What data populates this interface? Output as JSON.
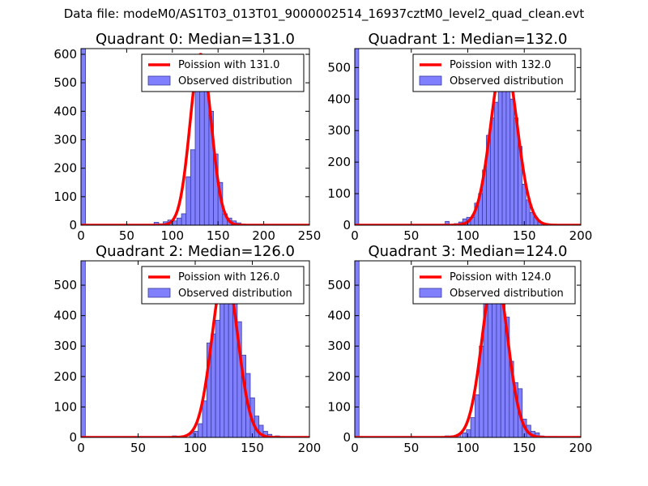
{
  "suptitle": "Data file: modeM0/AS1T03_013T01_9000002514_16937cztM0_level2_quad_clean.evt",
  "colors": {
    "bar_fill": "#8080ff",
    "bar_edge": "#3a3aa0",
    "curve": "#ff0000"
  },
  "chart_data": [
    {
      "type": "bar",
      "title": "Quadrant 0: Median=131.0",
      "xlim": [
        0,
        250
      ],
      "ylim": [
        0,
        620
      ],
      "xticks": [
        0,
        50,
        100,
        150,
        200,
        250
      ],
      "yticks": [
        0,
        100,
        200,
        300,
        400,
        500,
        600
      ],
      "legend": {
        "curve_label": "Poission with 131.0",
        "hist_label": "Observed distribution"
      },
      "curve": {
        "label": "Poission with 131.0",
        "mean": 131.0,
        "peak": 600,
        "sigma": 11.5
      },
      "hist": {
        "bin_width": 5,
        "bins": [
          {
            "x": 0,
            "h": 620
          },
          {
            "x": 80,
            "h": 10
          },
          {
            "x": 85,
            "h": 5
          },
          {
            "x": 90,
            "h": 12
          },
          {
            "x": 95,
            "h": 18
          },
          {
            "x": 100,
            "h": 15
          },
          {
            "x": 105,
            "h": 25
          },
          {
            "x": 110,
            "h": 40
          },
          {
            "x": 115,
            "h": 170
          },
          {
            "x": 120,
            "h": 265
          },
          {
            "x": 125,
            "h": 470
          },
          {
            "x": 130,
            "h": 510
          },
          {
            "x": 135,
            "h": 490
          },
          {
            "x": 140,
            "h": 400
          },
          {
            "x": 145,
            "h": 250
          },
          {
            "x": 150,
            "h": 150
          },
          {
            "x": 155,
            "h": 40
          },
          {
            "x": 160,
            "h": 25
          },
          {
            "x": 165,
            "h": 15
          },
          {
            "x": 170,
            "h": 8
          },
          {
            "x": 175,
            "h": 4
          },
          {
            "x": 180,
            "h": 2
          }
        ]
      }
    },
    {
      "type": "bar",
      "title": "Quadrant 1: Median=132.0",
      "xlim": [
        0,
        200
      ],
      "ylim": [
        0,
        560
      ],
      "xticks": [
        0,
        50,
        100,
        150,
        200
      ],
      "yticks": [
        0,
        100,
        200,
        300,
        400,
        500
      ],
      "legend": {
        "curve_label": "Poission with 132.0",
        "hist_label": "Observed distribution"
      },
      "curve": {
        "label": "Poission with 132.0",
        "mean": 132.0,
        "peak": 535,
        "sigma": 11.5
      },
      "hist": {
        "bin_width": 3.5,
        "bins": [
          {
            "x": 0,
            "h": 560
          },
          {
            "x": 80,
            "h": 12
          },
          {
            "x": 88,
            "h": 5
          },
          {
            "x": 92,
            "h": 10
          },
          {
            "x": 95.5,
            "h": 20
          },
          {
            "x": 99,
            "h": 25
          },
          {
            "x": 102.5,
            "h": 25
          },
          {
            "x": 106,
            "h": 70
          },
          {
            "x": 109.5,
            "h": 100
          },
          {
            "x": 113,
            "h": 175
          },
          {
            "x": 116.5,
            "h": 285
          },
          {
            "x": 120,
            "h": 340
          },
          {
            "x": 123.5,
            "h": 390
          },
          {
            "x": 127,
            "h": 450
          },
          {
            "x": 130.5,
            "h": 530
          },
          {
            "x": 134,
            "h": 450
          },
          {
            "x": 137.5,
            "h": 400
          },
          {
            "x": 141,
            "h": 340
          },
          {
            "x": 144.5,
            "h": 250
          },
          {
            "x": 148,
            "h": 130
          },
          {
            "x": 151.5,
            "h": 80
          },
          {
            "x": 155,
            "h": 40
          },
          {
            "x": 158.5,
            "h": 25
          },
          {
            "x": 162,
            "h": 10
          },
          {
            "x": 168,
            "h": 5
          },
          {
            "x": 175,
            "h": 2
          }
        ]
      }
    },
    {
      "type": "bar",
      "title": "Quadrant 2: Median=126.0",
      "xlim": [
        0,
        200
      ],
      "ylim": [
        0,
        580
      ],
      "xticks": [
        0,
        50,
        100,
        150,
        200
      ],
      "yticks": [
        0,
        100,
        200,
        300,
        400,
        500
      ],
      "legend": {
        "curve_label": "Poission with 126.0",
        "hist_label": "Observed distribution"
      },
      "curve": {
        "label": "Poission with 126.0",
        "mean": 126.0,
        "peak": 550,
        "sigma": 11.2
      },
      "hist": {
        "bin_width": 3.8,
        "bins": [
          {
            "x": 0,
            "h": 580
          },
          {
            "x": 80,
            "h": 5
          },
          {
            "x": 88,
            "h": 5
          },
          {
            "x": 95,
            "h": 15
          },
          {
            "x": 98.8,
            "h": 20
          },
          {
            "x": 102.6,
            "h": 45
          },
          {
            "x": 106.4,
            "h": 120
          },
          {
            "x": 110.2,
            "h": 310
          },
          {
            "x": 114,
            "h": 340
          },
          {
            "x": 117.8,
            "h": 385
          },
          {
            "x": 121.6,
            "h": 510
          },
          {
            "x": 125.4,
            "h": 495
          },
          {
            "x": 129.2,
            "h": 505
          },
          {
            "x": 133,
            "h": 440
          },
          {
            "x": 136.8,
            "h": 380
          },
          {
            "x": 140.6,
            "h": 270
          },
          {
            "x": 144.4,
            "h": 210
          },
          {
            "x": 148.2,
            "h": 130
          },
          {
            "x": 152,
            "h": 70
          },
          {
            "x": 155.8,
            "h": 40
          },
          {
            "x": 159.6,
            "h": 20
          },
          {
            "x": 163.4,
            "h": 10
          },
          {
            "x": 170,
            "h": 5
          }
        ]
      }
    },
    {
      "type": "bar",
      "title": "Quadrant 3: Median=124.0",
      "xlim": [
        0,
        200
      ],
      "ylim": [
        0,
        580
      ],
      "xticks": [
        0,
        50,
        100,
        150,
        200
      ],
      "yticks": [
        0,
        100,
        200,
        300,
        400,
        500
      ],
      "legend": {
        "curve_label": "Poission with 124.0",
        "hist_label": "Observed distribution"
      },
      "curve": {
        "label": "Poission with 124.0",
        "mean": 124.0,
        "peak": 545,
        "sigma": 11.2
      },
      "hist": {
        "bin_width": 3.8,
        "bins": [
          {
            "x": 0,
            "h": 580
          },
          {
            "x": 80,
            "h": 5
          },
          {
            "x": 85,
            "h": 5
          },
          {
            "x": 90,
            "h": 10
          },
          {
            "x": 95,
            "h": 15
          },
          {
            "x": 98.8,
            "h": 25
          },
          {
            "x": 102.6,
            "h": 65
          },
          {
            "x": 106.4,
            "h": 140
          },
          {
            "x": 110.2,
            "h": 300
          },
          {
            "x": 114,
            "h": 440
          },
          {
            "x": 117.8,
            "h": 510
          },
          {
            "x": 121.6,
            "h": 470
          },
          {
            "x": 125.4,
            "h": 550
          },
          {
            "x": 129.2,
            "h": 440
          },
          {
            "x": 133,
            "h": 395
          },
          {
            "x": 136.8,
            "h": 250
          },
          {
            "x": 140.6,
            "h": 180
          },
          {
            "x": 144.4,
            "h": 160
          },
          {
            "x": 148.2,
            "h": 60
          },
          {
            "x": 152,
            "h": 40
          },
          {
            "x": 155.8,
            "h": 20
          },
          {
            "x": 159.6,
            "h": 15
          },
          {
            "x": 163.4,
            "h": 5
          },
          {
            "x": 170,
            "h": 3
          }
        ]
      }
    }
  ]
}
